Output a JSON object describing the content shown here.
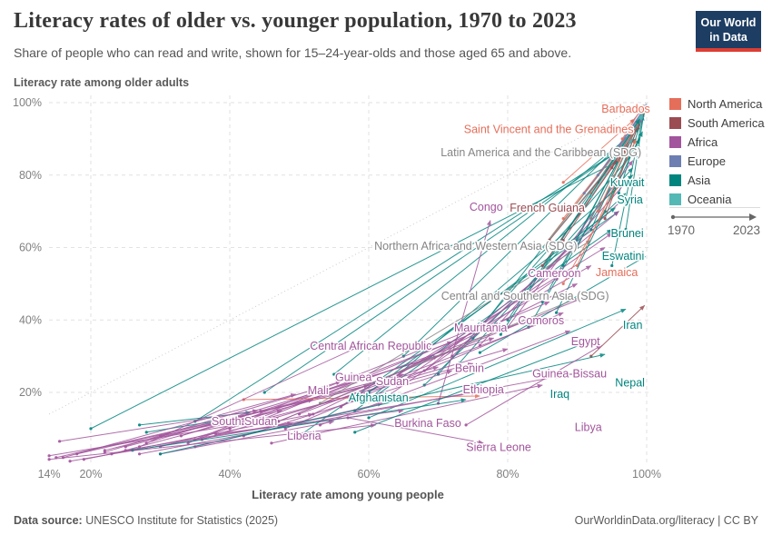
{
  "header": {
    "title": "Literacy rates of older vs. younger population, 1970 to 2023",
    "subtitle": "Share of people who can read and write, shown for 15–24-year-olds and those aged 65 and above.",
    "logo_line1": "Our World",
    "logo_line2": "in Data"
  },
  "colors": {
    "northAmerica": "#E56E5A",
    "southAmerica": "#9A4C52",
    "africa": "#A2559C",
    "europe": "#6D7FB2",
    "asia": "#00847E",
    "oceania": "#54B8B5",
    "aggregate": "#858585",
    "grid": "#E2E2E2",
    "diagonal": "#CCCCCC",
    "tick": "#808080"
  },
  "legend": {
    "items": [
      {
        "label": "North America",
        "region": "northAmerica"
      },
      {
        "label": "South America",
        "region": "southAmerica"
      },
      {
        "label": "Africa",
        "region": "africa"
      },
      {
        "label": "Europe",
        "region": "europe"
      },
      {
        "label": "Asia",
        "region": "asia"
      },
      {
        "label": "Oceania",
        "region": "oceania"
      }
    ],
    "time_start": "1970",
    "time_end": "2023"
  },
  "axes": {
    "y_title": "Literacy rate among older adults",
    "x_title": "Literacy rate among young people"
  },
  "footer": {
    "source_label": "Data source:",
    "source_text": " UNESCO Institute for Statistics (2025)",
    "right_text": "OurWorldinData.org/literacy | CC BY"
  },
  "chart_data": {
    "type": "scatter",
    "subtype": "connected-arrows-1970-to-2023",
    "title": "Literacy rates of older vs. younger population, 1970 to 2023",
    "xlabel": "Literacy rate among young people",
    "ylabel": "Literacy rate among older adults",
    "x_ticks": [
      {
        "v": 14,
        "label": "14%"
      },
      {
        "v": 20,
        "label": "20%"
      },
      {
        "v": 40,
        "label": "40%"
      },
      {
        "v": 60,
        "label": "60%"
      },
      {
        "v": 80,
        "label": "80%"
      },
      {
        "v": 100,
        "label": "100%"
      }
    ],
    "y_ticks": [
      {
        "v": 20,
        "label": "20%"
      },
      {
        "v": 40,
        "label": "40%"
      },
      {
        "v": 60,
        "label": "60%"
      },
      {
        "v": 80,
        "label": "80%"
      },
      {
        "v": 100,
        "label": "100%"
      }
    ],
    "x_range": [
      14,
      101
    ],
    "y_range": [
      0,
      103
    ],
    "grid": true,
    "diagonal_parity_line": true,
    "series": [
      {
        "name": "Barbados",
        "region": "northAmerica",
        "label_at": [
          97,
          98.3
        ],
        "p1970": [
          96.5,
          90
        ],
        "p2023": [
          99.6,
          99.4
        ]
      },
      {
        "name": "Saint Vincent and the Grenadines",
        "region": "northAmerica",
        "label_at": [
          85.9,
          92.6
        ],
        "p1970": [
          88,
          78
        ],
        "p2023": [
          98.3,
          95.5
        ]
      },
      {
        "name": "Latin America and the Caribbean (SDG)",
        "region": "aggregate",
        "label_at": [
          84.8,
          86.2
        ],
        "p1970": [
          92,
          68
        ],
        "p2023": [
          98.8,
          94.5
        ]
      },
      {
        "name": "Kuwait",
        "region": "asia",
        "label_at": [
          97.2,
          77.9
        ],
        "p1970": [
          79,
          36
        ],
        "p2023": [
          99,
          95.5
        ]
      },
      {
        "name": "Syria",
        "region": "asia",
        "label_at": [
          97.6,
          73.2
        ],
        "p1970": [
          60,
          20
        ],
        "p2023": [
          95.5,
          71
        ]
      },
      {
        "name": "Congo",
        "region": "africa",
        "label_at": [
          76.9,
          71.2
        ],
        "p1970": [
          70,
          17
        ],
        "p2023": [
          77.5,
          67.5
        ]
      },
      {
        "name": "French Guiana",
        "region": "southAmerica",
        "label_at": [
          85.7,
          70.9
        ],
        "p1970": [
          86,
          62
        ],
        "p2023": [
          97,
          87.5
        ]
      },
      {
        "name": "Brunei",
        "region": "asia",
        "label_at": [
          97.2,
          63.9
        ],
        "p1970": [
          87,
          42
        ],
        "p2023": [
          99.4,
          92
        ]
      },
      {
        "name": "Northern Africa and Western Asia (SDG)",
        "region": "aggregate",
        "label_at": [
          75.4,
          60.4
        ],
        "p1970": [
          53,
          17
        ],
        "p2023": [
          92,
          62
        ]
      },
      {
        "name": "Eswatini",
        "region": "asia",
        "label_at": [
          96.6,
          57.6
        ],
        "p1970": [
          76,
          31
        ],
        "p2023": [
          99.8,
          57.5
        ]
      },
      {
        "name": "Jamaica",
        "region": "northAmerica",
        "label_at": [
          95.7,
          53.1
        ],
        "p1970": [
          88,
          50
        ],
        "p2023": [
          96.5,
          79
        ]
      },
      {
        "name": "Cameroon",
        "region": "africa",
        "label_at": [
          86.7,
          52.9
        ],
        "p1970": [
          62,
          18
        ],
        "p2023": [
          87.5,
          52
        ]
      },
      {
        "name": "Central and Southern Asia (SDG)",
        "region": "aggregate",
        "label_at": [
          82.5,
          46.6
        ],
        "p1970": [
          47,
          12
        ],
        "p2023": [
          90,
          46
        ]
      },
      {
        "name": "Comoros",
        "region": "africa",
        "label_at": [
          84.8,
          39.8
        ],
        "p1970": [
          50,
          14
        ],
        "p2023": [
          86,
          40
        ]
      },
      {
        "name": "Mauritania",
        "region": "africa",
        "label_at": [
          76.1,
          37.8
        ],
        "p1970": [
          35,
          7
        ],
        "p2023": [
          75,
          37.5
        ]
      },
      {
        "name": "Iran",
        "region": "asia",
        "label_at": [
          98,
          38.6
        ],
        "p1970": [
          60,
          13
        ],
        "p2023": [
          97,
          43
        ]
      },
      {
        "name": "Central African Republic",
        "region": "africa",
        "label_at": [
          60.3,
          32.8
        ],
        "p1970": [
          27,
          5
        ],
        "p2023": [
          59,
          33
        ]
      },
      {
        "name": "Egypt",
        "region": "africa",
        "label_at": [
          91.2,
          34.1
        ],
        "p1970": [
          47,
          12
        ],
        "p2023": [
          92,
          47
        ]
      },
      {
        "name": "Guinea",
        "region": "africa",
        "label_at": [
          57.8,
          24.1
        ],
        "p1970": [
          22,
          3.5
        ],
        "p2023": [
          56,
          23
        ]
      },
      {
        "name": "Sudan",
        "region": "africa",
        "label_at": [
          63.4,
          23
        ],
        "p1970": [
          34,
          6
        ],
        "p2023": [
          72,
          34
        ]
      },
      {
        "name": "Benin",
        "region": "africa",
        "label_at": [
          74.5,
          26.6
        ],
        "p1970": [
          23,
          3
        ],
        "p2023": [
          70,
          27
        ]
      },
      {
        "name": "Guinea-Bissau",
        "region": "africa",
        "label_at": [
          88.9,
          25.1
        ],
        "p1970": [
          27,
          3
        ],
        "p2023": [
          87.5,
          24.5
        ]
      },
      {
        "name": "Mali",
        "region": "africa",
        "label_at": [
          52.7,
          20.5
        ],
        "p1970": [
          16,
          2
        ],
        "p2023": [
          49.5,
          19.5
        ]
      },
      {
        "name": "Ethiopia",
        "region": "africa",
        "label_at": [
          76.5,
          20.8
        ],
        "p1970": [
          25,
          4
        ],
        "p2023": [
          75.5,
          20
        ]
      },
      {
        "name": "Iraq",
        "region": "asia",
        "label_at": [
          87.5,
          19.5
        ],
        "p1970": [
          58,
          9
        ],
        "p2023": [
          91,
          33.5
        ]
      },
      {
        "name": "Afghanistan",
        "region": "asia",
        "label_at": [
          61.4,
          18.5
        ],
        "p1970": [
          26,
          4
        ],
        "p2023": [
          74,
          18
        ]
      },
      {
        "name": "Nepal",
        "region": "asia",
        "label_at": [
          97.6,
          22.6
        ],
        "p1970": [
          30,
          3
        ],
        "p2023": [
          94,
          30.5
        ]
      },
      {
        "name": "South Sudan",
        "region": "africa",
        "label_at": [
          42.1,
          12
        ],
        "p1970": [
          30,
          8
        ],
        "p2023": [
          47.5,
          15
        ]
      },
      {
        "name": "Liberia",
        "region": "africa",
        "label_at": [
          50.7,
          8
        ],
        "p1970": [
          38,
          8.5
        ],
        "p2023": [
          65,
          15
        ]
      },
      {
        "name": "Burkina Faso",
        "region": "africa",
        "label_at": [
          68.5,
          11.5
        ],
        "p1970": [
          14,
          1.5
        ],
        "p2023": [
          61,
          11
        ]
      },
      {
        "name": "Libya",
        "region": "africa",
        "label_at": [
          91.6,
          10.3
        ],
        "p1970": [
          74,
          11
        ],
        "p2023": [
          93.5,
          33
        ]
      },
      {
        "name": "Sierra Leone",
        "region": "africa",
        "label_at": [
          78.7,
          4.8
        ],
        "p1970": [
          57,
          13
        ],
        "p2023": [
          76.5,
          6
        ]
      }
    ],
    "background_segments": [
      [
        "asia",
        20,
        10,
        96,
        84
      ],
      [
        "asia",
        35,
        12,
        97,
        88
      ],
      [
        "asia",
        45,
        20,
        98.5,
        90
      ],
      [
        "asia",
        55,
        25,
        99,
        93
      ],
      [
        "asia",
        60,
        18,
        98,
        80
      ],
      [
        "asia",
        65,
        30,
        99,
        94
      ],
      [
        "asia",
        70,
        25,
        99,
        88
      ],
      [
        "asia",
        75,
        35,
        99.5,
        96
      ],
      [
        "asia",
        80,
        40,
        99.5,
        96.5
      ],
      [
        "asia",
        85,
        45,
        99.7,
        97.5
      ],
      [
        "asia",
        88,
        55,
        99.8,
        98.3
      ],
      [
        "asia",
        90,
        60,
        99.8,
        98.8
      ],
      [
        "asia",
        92,
        65,
        99.9,
        99
      ],
      [
        "asia",
        50,
        8,
        96,
        70
      ],
      [
        "asia",
        68,
        22,
        97,
        75
      ],
      [
        "asia",
        73,
        28,
        98,
        82
      ],
      [
        "asia",
        83,
        38,
        99,
        90
      ],
      [
        "asia",
        94,
        70,
        99.9,
        99
      ],
      [
        "asia",
        96,
        75,
        99.9,
        99.3
      ],
      [
        "asia",
        58,
        15,
        95,
        65
      ],
      [
        "asia",
        27,
        11,
        43,
        14.5
      ],
      [
        "asia",
        28,
        9,
        41,
        13
      ],
      [
        "asia",
        95,
        55,
        99.5,
        96.5
      ],
      [
        "asia",
        97,
        65,
        99.7,
        98.4
      ],
      [
        "africa",
        15,
        2,
        45,
        15
      ],
      [
        "africa",
        18,
        3,
        52,
        18
      ],
      [
        "africa",
        22,
        4,
        60,
        22
      ],
      [
        "africa",
        25,
        5,
        65,
        25
      ],
      [
        "africa",
        28,
        6,
        70,
        30
      ],
      [
        "africa",
        30,
        5,
        75,
        28
      ],
      [
        "africa",
        33,
        8,
        78,
        35
      ],
      [
        "africa",
        36,
        7,
        80,
        32
      ],
      [
        "africa",
        40,
        10,
        83,
        40
      ],
      [
        "africa",
        44,
        12,
        86,
        45
      ],
      [
        "africa",
        48,
        10,
        88,
        42
      ],
      [
        "africa",
        52,
        14,
        90,
        50
      ],
      [
        "africa",
        56,
        16,
        92,
        55
      ],
      [
        "africa",
        60,
        20,
        94,
        60
      ],
      [
        "africa",
        64,
        22,
        95,
        64
      ],
      [
        "africa",
        68,
        26,
        96,
        70
      ],
      [
        "africa",
        72,
        30,
        97,
        74
      ],
      [
        "africa",
        30,
        3,
        55,
        12
      ],
      [
        "africa",
        35,
        5,
        62,
        17
      ],
      [
        "africa",
        42,
        8,
        72,
        26
      ],
      [
        "africa",
        76,
        33,
        97.5,
        79
      ],
      [
        "africa",
        80,
        38,
        98,
        84
      ],
      [
        "africa",
        14,
        2.5,
        47,
        13
      ],
      [
        "africa",
        17,
        1,
        49,
        11.5
      ],
      [
        "africa",
        15.5,
        6.5,
        44,
        15
      ],
      [
        "africa",
        19,
        1.5,
        52,
        14
      ],
      [
        "africa",
        46,
        6,
        85,
        22
      ],
      [
        "africa",
        53,
        11,
        89,
        37
      ],
      [
        "northAmerica",
        85,
        60,
        98,
        92
      ],
      [
        "northAmerica",
        88,
        68,
        99,
        95
      ],
      [
        "northAmerica",
        92,
        75,
        99.5,
        97
      ],
      [
        "northAmerica",
        95,
        85,
        99.8,
        98.6
      ],
      [
        "northAmerica",
        90,
        55,
        98.5,
        90
      ],
      [
        "northAmerica",
        42,
        18,
        76,
        19
      ],
      [
        "northAmerica",
        93,
        70,
        99.2,
        96
      ],
      [
        "northAmerica",
        96,
        84,
        99.7,
        98.4
      ],
      [
        "southAmerica",
        88,
        62,
        99,
        94
      ],
      [
        "southAmerica",
        90,
        70,
        99.3,
        96
      ],
      [
        "southAmerica",
        93,
        78,
        99.6,
        97.5
      ],
      [
        "southAmerica",
        95,
        82,
        99.7,
        98
      ],
      [
        "southAmerica",
        85,
        55,
        98,
        90
      ],
      [
        "southAmerica",
        92,
        30,
        99.7,
        44
      ],
      [
        "southAmerica",
        94,
        68,
        99.3,
        96.5
      ],
      [
        "europe",
        93,
        80,
        99.7,
        98.5
      ],
      [
        "europe",
        95,
        85,
        99.9,
        99
      ],
      [
        "europe",
        97,
        90,
        99.9,
        99.3
      ],
      [
        "europe",
        91,
        75,
        99.5,
        96
      ],
      [
        "europe",
        98,
        95,
        100,
        99.6
      ],
      [
        "europe",
        96,
        86,
        99.8,
        99
      ],
      [
        "oceania",
        90,
        70,
        99.4,
        96.5
      ],
      [
        "oceania",
        94,
        80,
        99.7,
        98.3
      ],
      [
        "oceania",
        85,
        60,
        98,
        90
      ],
      [
        "oceania",
        92,
        74,
        99.5,
        97
      ]
    ]
  }
}
